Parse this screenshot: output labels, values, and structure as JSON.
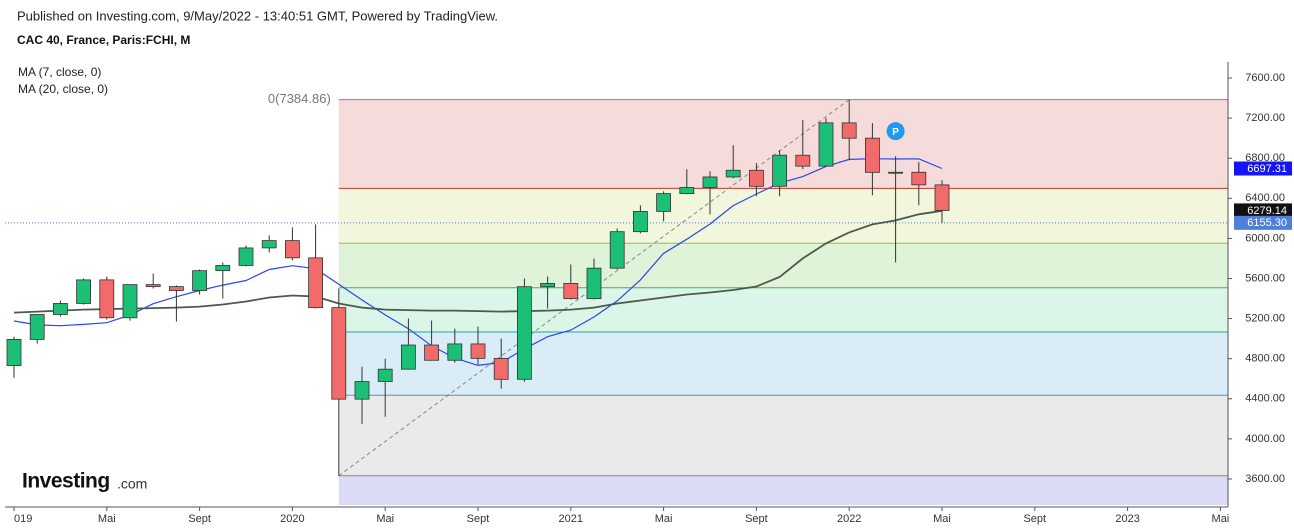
{
  "chart_data": {
    "type": "candlestick",
    "header": "Published on Investing.com, 9/May/2022 - 13:40:51 GMT, Powered by TradingView.",
    "title": "CAC 40, France, Paris:FCHI, M",
    "categories": [
      "2019-01",
      "2019-02",
      "2019-03",
      "2019-04",
      "2019-05",
      "2019-06",
      "2019-07",
      "2019-08",
      "2019-09",
      "2019-10",
      "2019-11",
      "2019-12",
      "2020-01",
      "2020-02",
      "2020-03",
      "2020-04",
      "2020-05",
      "2020-06",
      "2020-07",
      "2020-08",
      "2020-09",
      "2020-10",
      "2020-11",
      "2020-12",
      "2021-01",
      "2021-02",
      "2021-03",
      "2021-04",
      "2021-05",
      "2021-06",
      "2021-07",
      "2021-08",
      "2021-09",
      "2021-10",
      "2021-11",
      "2021-12",
      "2022-01",
      "2022-02",
      "2022-03",
      "2022-04",
      "2022-05"
    ],
    "open": [
      4731,
      4992,
      5241,
      5351,
      5586,
      5208,
      5539,
      5519,
      5480,
      5678,
      5730,
      5905,
      5978,
      5806,
      5309,
      4396,
      4572,
      4695,
      4936,
      4784,
      4947,
      4803,
      4594,
      5518,
      5551,
      5399,
      5703,
      6067,
      6269,
      6447,
      6508,
      6613,
      6680,
      6520,
      6830,
      6721,
      7153,
      7000,
      6659,
      6660,
      6534
    ],
    "high": [
      5020,
      5241,
      5380,
      5600,
      5620,
      5540,
      5650,
      5530,
      5690,
      5760,
      5930,
      6030,
      6110,
      6140,
      5500,
      4720,
      4800,
      5200,
      5180,
      5100,
      5120,
      5000,
      5600,
      5620,
      5740,
      5800,
      6100,
      6330,
      6470,
      6690,
      6670,
      6930,
      6750,
      6880,
      7180,
      7200,
      7385,
      7150,
      6820,
      6760,
      6580
    ],
    "low": [
      4610,
      4950,
      5220,
      5340,
      5190,
      5180,
      5500,
      5170,
      5440,
      5400,
      5720,
      5860,
      5780,
      5300,
      3630,
      4150,
      4220,
      4690,
      4780,
      4760,
      4740,
      4500,
      4570,
      5300,
      5390,
      5390,
      5690,
      6050,
      6170,
      6440,
      6240,
      6600,
      6420,
      6420,
      6690,
      6720,
      6780,
      6430,
      5760,
      6330,
      6155
    ],
    "close": [
      4992,
      5241,
      5351,
      5586,
      5208,
      5539,
      5519,
      5480,
      5678,
      5730,
      5905,
      5978,
      5806,
      5309,
      4396,
      4572,
      4695,
      4936,
      4784,
      4947,
      4803,
      4594,
      5518,
      5551,
      5399,
      5703,
      6067,
      6269,
      6447,
      6508,
      6613,
      6680,
      6520,
      6830,
      6721,
      7153,
      7000,
      6659,
      6660,
      6534,
      6279
    ],
    "up_color": "#1cbf76",
    "down_color": "#f26b6b",
    "overlays": [
      {
        "name": "MA (7, close, 0)",
        "color": "#2946f0",
        "values": [
          5176,
          5137,
          5129,
          5142,
          5159,
          5235,
          5348,
          5418,
          5480,
          5534,
          5580,
          5690,
          5728,
          5698,
          5543,
          5385,
          5237,
          5099,
          4928,
          4806,
          4733,
          4762,
          4897,
          5019,
          5085,
          5216,
          5376,
          5586,
          5851,
          5992,
          6144,
          6327,
          6443,
          6552,
          6617,
          6718,
          6788,
          6795,
          6792,
          6794,
          6697
        ]
      },
      {
        "name": "MA (20, close, 0)",
        "color": "#4b5a4b",
        "values": [
          5260,
          5270,
          5280,
          5290,
          5295,
          5300,
          5305,
          5310,
          5320,
          5340,
          5370,
          5410,
          5430,
          5420,
          5350,
          5310,
          5290,
          5285,
          5280,
          5280,
          5275,
          5270,
          5275,
          5280,
          5290,
          5310,
          5350,
          5380,
          5410,
          5440,
          5460,
          5485,
          5520,
          5615,
          5800,
          5950,
          6060,
          6140,
          6180,
          6240,
          6275
        ]
      }
    ],
    "fib_label": "0(7384.86)",
    "fib_levels": [
      7384.86,
      6499,
      5951,
      5508,
      5066,
      4435,
      3632.06
    ],
    "fib_zone_colors": [
      "#f4d5d5",
      "#eef5d6",
      "#d9f1d1",
      "#d5f3e5",
      "#d4e9f3",
      "#e6e6e6",
      "#d5d5f3"
    ],
    "fib_line_colors": [
      "#888888",
      "#c0392b",
      "#8fc63f",
      "#4caf50",
      "#26a69a",
      "#5b8fc9",
      "#888888"
    ],
    "fib_from": "2020-03",
    "fib_to": "2022-01",
    "annotation": {
      "text": "P",
      "x": "2022-03",
      "value": 7070,
      "color": "#1e9bf0"
    },
    "price_labels": [
      {
        "value": 6697.31,
        "color": "#1414f5"
      },
      {
        "value": 6279.14,
        "color": "#111111"
      },
      {
        "value": 6155.3,
        "label": "6155.30",
        "color": "#4d7fdb",
        "dotted": true
      }
    ],
    "logo": {
      "name": "Investing",
      "suffix": ".com"
    },
    "xlim": [
      "2018-12",
      "2023-06"
    ],
    "ylim": [
      3340,
      7760
    ],
    "yticks": [
      {
        "value": 3600,
        "label": "3600.00"
      },
      {
        "value": 4000,
        "label": "4000.00"
      },
      {
        "value": 4400,
        "label": "4400.00"
      },
      {
        "value": 4800,
        "label": "4800.00"
      },
      {
        "value": 5200,
        "label": "5200.00"
      },
      {
        "value": 5600,
        "label": "5600.00"
      },
      {
        "value": 6000,
        "label": "6000.00"
      },
      {
        "value": 6400,
        "label": "6400.00"
      },
      {
        "value": 6800,
        "label": "6800.00"
      },
      {
        "value": 7200,
        "label": "7200.00"
      },
      {
        "value": 7600,
        "label": "7600.00"
      }
    ],
    "xticks": [
      {
        "value": "2019-01",
        "label": "019"
      },
      {
        "value": "2019-05",
        "label": "Mai"
      },
      {
        "value": "2019-09",
        "label": "Sept"
      },
      {
        "value": "2020-01",
        "label": "2020"
      },
      {
        "value": "2020-05",
        "label": "Mai"
      },
      {
        "value": "2020-09",
        "label": "Sept"
      },
      {
        "value": "2021-01",
        "label": "2021"
      },
      {
        "value": "2021-05",
        "label": "Mai"
      },
      {
        "value": "2021-09",
        "label": "Sept"
      },
      {
        "value": "2022-01",
        "label": "2022"
      },
      {
        "value": "2022-05",
        "label": "Mai"
      },
      {
        "value": "2022-09",
        "label": "Sept"
      },
      {
        "value": "2023-01",
        "label": "2023"
      },
      {
        "value": "2023-05",
        "label": "Mai"
      }
    ]
  }
}
